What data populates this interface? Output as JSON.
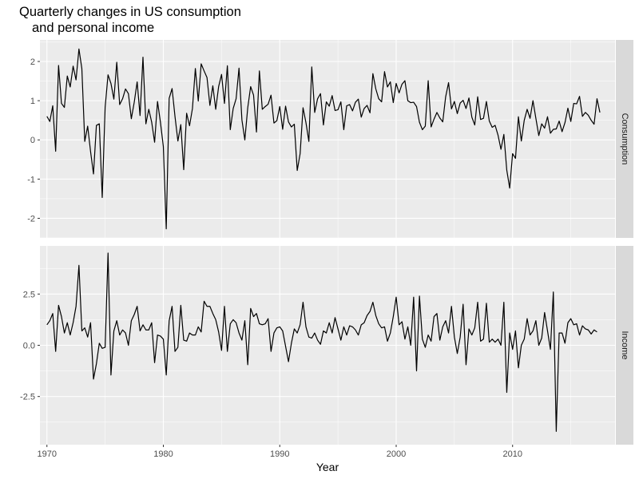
{
  "title_line1": "Quarterly changes in US consumption",
  "title_line2": "and personal income",
  "chart_data": {
    "type": "line",
    "title": "Quarterly changes in US consumption and personal income",
    "xlabel": "Year",
    "xlim": [
      1969.4,
      2018.8
    ],
    "x_ticks": [
      1970,
      1980,
      1990,
      2000,
      2010
    ],
    "x_tick_labels": [
      "1970",
      "1980",
      "1990",
      "2000",
      "2010"
    ],
    "x_start": 1970.0,
    "x_step": 0.25,
    "grid": true,
    "panels": [
      {
        "name": "Consumption",
        "strip_label": "Consumption",
        "ylim": [
          -2.5,
          2.55
        ],
        "y_ticks": [
          -2,
          -1,
          0,
          1,
          2
        ],
        "y_tick_labels": [
          "-2",
          "-1",
          "0",
          "1",
          "2"
        ],
        "values": [
          0.6,
          0.47,
          0.87,
          -0.29,
          1.9,
          0.93,
          0.83,
          1.63,
          1.35,
          1.88,
          1.53,
          2.32,
          1.82,
          -0.04,
          0.35,
          -0.3,
          -0.87,
          0.37,
          0.41,
          -1.47,
          0.83,
          1.66,
          1.44,
          1.04,
          1.98,
          0.9,
          1.05,
          1.3,
          1.18,
          0.54,
          0.96,
          1.48,
          0.62,
          2.11,
          0.41,
          0.78,
          0.45,
          -0.06,
          0.98,
          0.45,
          -0.17,
          -2.27,
          1.06,
          1.31,
          0.6,
          -0.03,
          0.39,
          -0.76,
          0.68,
          0.36,
          0.8,
          1.82,
          0.99,
          1.94,
          1.76,
          1.59,
          0.88,
          1.38,
          0.78,
          1.36,
          1.67,
          0.93,
          1.89,
          0.26,
          0.8,
          1.05,
          1.83,
          0.51,
          0.0,
          0.82,
          1.36,
          1.14,
          0.2,
          1.76,
          0.78,
          0.85,
          0.91,
          1.14,
          0.43,
          0.49,
          0.85,
          0.27,
          0.86,
          0.46,
          0.33,
          0.4,
          -0.78,
          -0.35,
          0.82,
          0.44,
          -0.04,
          1.86,
          0.7,
          1.05,
          1.18,
          0.38,
          0.97,
          0.86,
          1.13,
          0.75,
          0.77,
          0.97,
          0.26,
          0.87,
          0.9,
          0.74,
          0.96,
          1.04,
          0.58,
          0.8,
          0.88,
          0.69,
          1.69,
          1.3,
          1.05,
          0.97,
          1.74,
          1.35,
          1.48,
          0.95,
          1.44,
          1.2,
          1.42,
          1.51,
          1.0,
          0.95,
          0.96,
          0.85,
          0.45,
          0.26,
          0.35,
          1.51,
          0.33,
          0.53,
          0.7,
          0.56,
          0.46,
          1.1,
          1.46,
          0.79,
          0.98,
          0.67,
          0.94,
          1.01,
          0.8,
          1.07,
          0.58,
          0.38,
          1.1,
          0.52,
          0.55,
          0.98,
          0.48,
          0.32,
          0.37,
          0.12,
          -0.24,
          0.14,
          -0.77,
          -1.23,
          -0.35,
          -0.47,
          0.59,
          -0.03,
          0.5,
          0.78,
          0.55,
          1.0,
          0.55,
          0.11,
          0.41,
          0.3,
          0.59,
          0.17,
          0.27,
          0.28,
          0.48,
          0.21,
          0.44,
          0.81,
          0.47,
          0.93,
          0.92,
          1.11,
          0.6,
          0.7,
          0.63,
          0.5,
          0.4,
          1.05,
          0.7
        ]
      },
      {
        "name": "Income",
        "strip_label": "Income",
        "ylim": [
          -4.85,
          4.85
        ],
        "y_ticks": [
          -2.5,
          0.0,
          2.5
        ],
        "y_tick_labels": [
          "-2.5",
          "0.0",
          "2.5"
        ],
        "values": [
          1.0,
          1.2,
          1.55,
          -0.3,
          1.95,
          1.4,
          0.6,
          1.1,
          0.5,
          1.1,
          1.9,
          3.9,
          0.7,
          0.85,
          0.4,
          1.1,
          -1.65,
          -0.9,
          0.1,
          -0.15,
          -0.1,
          4.5,
          -1.45,
          0.7,
          1.2,
          0.5,
          0.75,
          0.6,
          0.0,
          1.2,
          1.5,
          1.9,
          0.7,
          1.0,
          0.75,
          0.75,
          1.1,
          -0.85,
          0.5,
          0.45,
          0.3,
          -1.45,
          1.2,
          1.9,
          -0.3,
          -0.1,
          1.95,
          0.25,
          0.2,
          0.6,
          0.5,
          0.5,
          0.9,
          0.65,
          2.15,
          1.9,
          1.9,
          1.55,
          1.25,
          0.65,
          -0.25,
          1.9,
          -0.3,
          1.05,
          1.25,
          1.1,
          0.6,
          0.25,
          1.2,
          -0.95,
          1.8,
          1.4,
          1.55,
          1.05,
          1.0,
          1.05,
          1.3,
          -0.3,
          0.6,
          0.85,
          0.9,
          0.7,
          -0.05,
          -0.8,
          0.1,
          0.8,
          0.6,
          1.0,
          2.1,
          0.9,
          0.4,
          0.35,
          0.6,
          0.25,
          0.05,
          0.7,
          0.6,
          1.1,
          0.6,
          1.35,
          0.8,
          0.25,
          0.9,
          0.5,
          0.95,
          0.9,
          0.75,
          0.5,
          1.0,
          1.1,
          1.45,
          1.65,
          2.1,
          1.45,
          1.05,
          0.85,
          0.9,
          0.2,
          0.6,
          1.4,
          2.35,
          1.0,
          1.15,
          0.3,
          0.9,
          0.0,
          2.35,
          -1.25,
          2.4,
          0.3,
          -0.1,
          0.5,
          0.2,
          1.4,
          1.55,
          0.25,
          0.9,
          1.2,
          0.6,
          1.9,
          0.4,
          -0.4,
          0.4,
          2.0,
          -0.95,
          0.8,
          0.5,
          0.85,
          2.1,
          0.2,
          0.3,
          2.05,
          0.15,
          0.3,
          0.15,
          0.3,
          0.0,
          2.1,
          -2.3,
          0.6,
          -0.2,
          0.7,
          -1.1,
          0.0,
          0.3,
          1.3,
          0.5,
          0.7,
          1.2,
          0.0,
          0.35,
          1.6,
          0.7,
          -0.2,
          2.6,
          -4.2,
          0.6,
          0.6,
          0.1,
          1.1,
          1.3,
          1.0,
          1.05,
          0.5,
          0.95,
          0.8,
          0.75,
          0.55,
          0.75,
          0.65
        ]
      }
    ]
  }
}
